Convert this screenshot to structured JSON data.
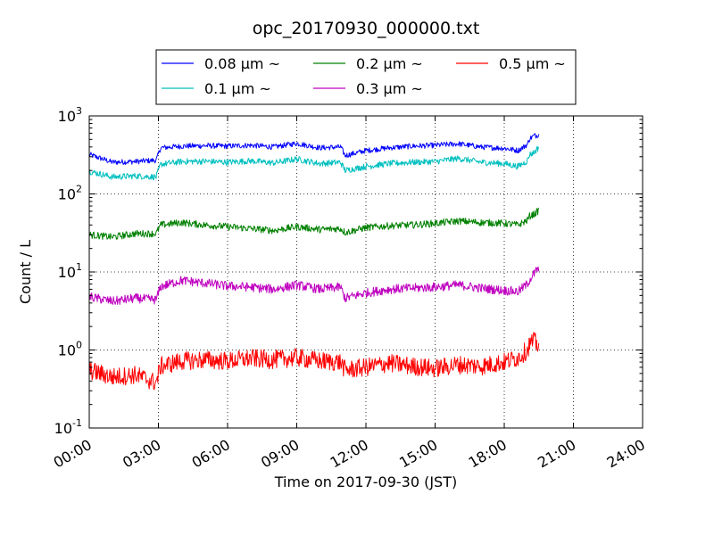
{
  "chart_data": {
    "type": "line",
    "title": "opc_20170930_000000.txt",
    "xlabel": "Time on 2017-09-30 (JST)",
    "ylabel": "Count / L",
    "x_ticks": [
      "00:00",
      "03:00",
      "06:00",
      "09:00",
      "12:00",
      "15:00",
      "18:00",
      "21:00",
      "24:00"
    ],
    "x_range": [
      "00:00",
      "24:00"
    ],
    "y_scale": "log",
    "ylim": [
      0.1,
      1000
    ],
    "y_ticks": [
      {
        "base": "10",
        "exp": "-1"
      },
      {
        "base": "10",
        "exp": "0"
      },
      {
        "base": "10",
        "exp": "1"
      },
      {
        "base": "10",
        "exp": "2"
      },
      {
        "base": "10",
        "exp": "3"
      }
    ],
    "grid": true,
    "legend_position": "top-center",
    "x_hours": [
      0,
      1,
      2,
      2.9,
      3.1,
      4,
      5,
      6,
      7,
      8,
      9,
      10,
      10.9,
      11.1,
      12,
      13,
      14,
      15,
      16,
      17,
      18,
      18.6,
      19,
      19.1,
      19.3,
      19.4,
      19.5
    ],
    "series": [
      {
        "name": "0.08 μm ~",
        "color": "#0000ff",
        "values": [
          320,
          255,
          260,
          270,
          390,
          410,
          415,
          410,
          420,
          400,
          445,
          390,
          400,
          310,
          360,
          390,
          410,
          420,
          440,
          400,
          385,
          360,
          430,
          510,
          560,
          560,
          585
        ]
      },
      {
        "name": "0.1 μm ~",
        "color": "#00bfbf",
        "values": [
          195,
          165,
          170,
          165,
          240,
          260,
          262,
          255,
          265,
          250,
          280,
          245,
          255,
          200,
          225,
          245,
          255,
          260,
          285,
          255,
          245,
          225,
          265,
          320,
          340,
          370,
          400
        ]
      },
      {
        "name": "0.2 μm ~",
        "color": "#008000",
        "values": [
          30,
          28,
          31,
          31,
          40,
          43,
          40,
          38,
          36,
          34,
          38,
          35,
          36,
          32,
          37,
          39,
          40,
          42,
          45,
          43,
          42,
          40,
          46,
          52,
          55,
          58,
          62
        ]
      },
      {
        "name": "0.3 μm ~",
        "color": "#bf00bf",
        "values": [
          4.8,
          4.2,
          4.6,
          4.4,
          6.5,
          7.8,
          7.2,
          6.6,
          6.4,
          6.0,
          6.8,
          6.0,
          6.4,
          4.6,
          5.4,
          6.0,
          6.2,
          6.4,
          6.8,
          6.2,
          5.8,
          5.6,
          7.0,
          8.0,
          9.5,
          10.5,
          11.0
        ]
      },
      {
        "name": "0.5 μm ~",
        "color": "#ff0000",
        "values": [
          0.55,
          0.45,
          0.48,
          0.38,
          0.62,
          0.72,
          0.75,
          0.72,
          0.78,
          0.75,
          0.8,
          0.72,
          0.7,
          0.55,
          0.6,
          0.68,
          0.62,
          0.58,
          0.65,
          0.62,
          0.7,
          0.8,
          1.0,
          1.2,
          1.3,
          1.2,
          1.15
        ]
      }
    ]
  }
}
